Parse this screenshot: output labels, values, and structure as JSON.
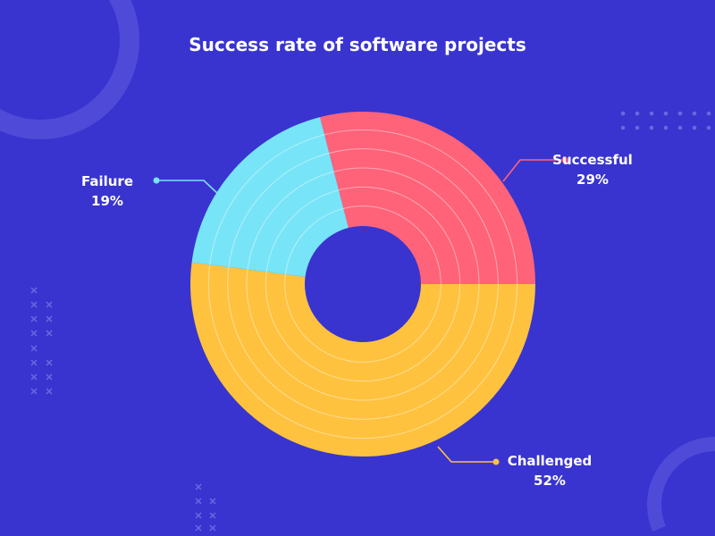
{
  "chart_data": {
    "type": "pie",
    "variant": "donut",
    "title": "Success rate of software projects",
    "slices": [
      {
        "label": "Successful",
        "value": 29,
        "display": "29%",
        "color": "#ff6379"
      },
      {
        "label": "Challenged",
        "value": 52,
        "display": "52%",
        "color": "#fec23f"
      },
      {
        "label": "Failure",
        "value": 19,
        "display": "19%",
        "color": "#78e4f8"
      }
    ]
  },
  "colors": {
    "background": "#3934cf",
    "decoration": "#4f4ad8"
  }
}
